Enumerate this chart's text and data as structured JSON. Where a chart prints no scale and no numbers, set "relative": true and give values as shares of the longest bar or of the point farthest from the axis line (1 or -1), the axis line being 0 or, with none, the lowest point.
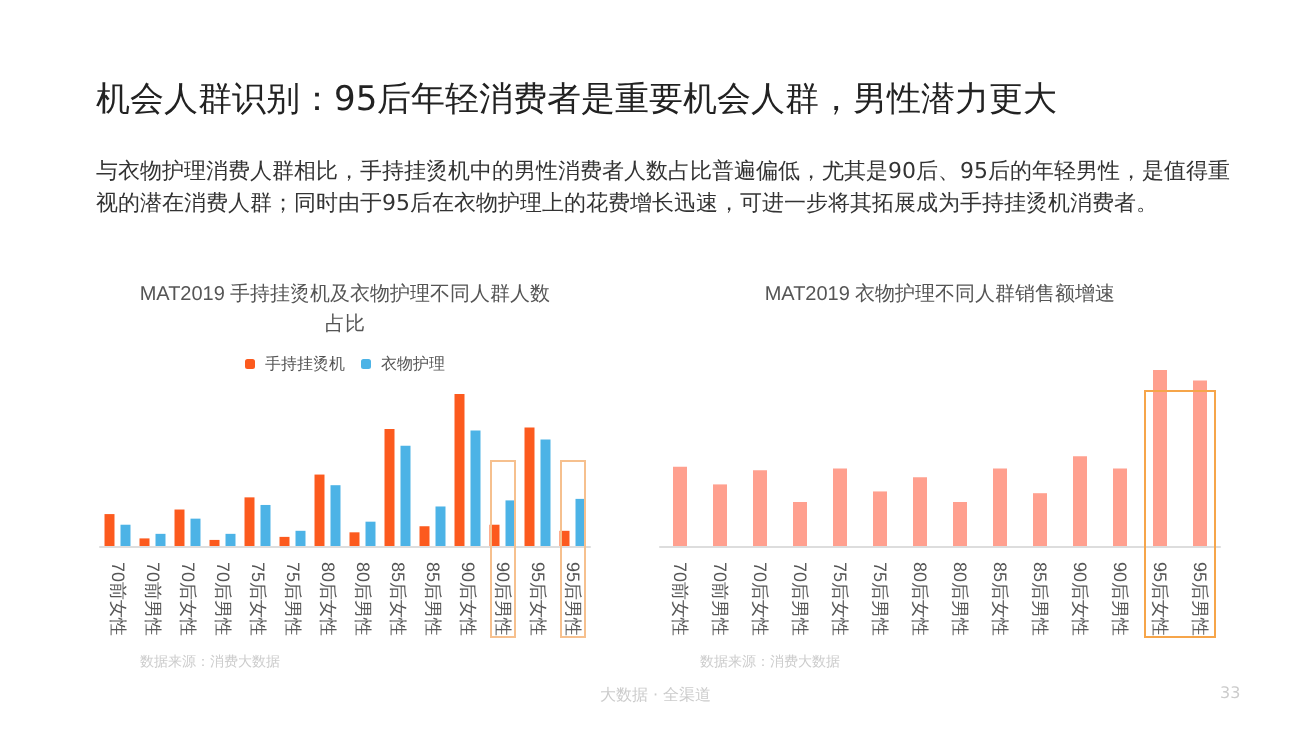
{
  "chart_data": [
    {
      "type": "other",
      "title": "机会人群识别：95后年轻消费者是重要机会人群，男性潜力更大",
      "annotations": [
        "与衣物护理消费人群相比，手持挂烫机中的男性消费者人数占比普遍偏低，尤其是90后、95后的年轻男性，是值得重视的潜在消费人群；同时由于95后在衣物护理上的花费增长迅速，可进一步将其拓展成为手持挂烫机消费者。",
        "大数据 · 全渠道",
        "33"
      ]
    },
    {
      "type": "bar",
      "title": "MAT2019 手持挂烫机及衣物护理不同人群人数占比",
      "relative": true,
      "legend": "top",
      "categories": [
        "70前女性",
        "70前男性",
        "70后女性",
        "70后男性",
        "75后女性",
        "75后男性",
        "80后女性",
        "80后男性",
        "85后女性",
        "85后男性",
        "90后女性",
        "90后男性",
        "95后女性",
        "95后男性"
      ],
      "series": [
        {
          "name": "手持挂烫机",
          "color": "#fc5a1e",
          "values": [
            0.21,
            0.05,
            0.24,
            0.04,
            0.32,
            0.06,
            0.47,
            0.09,
            0.77,
            0.13,
            1,
            0.14,
            0.78,
            0.1
          ]
        },
        {
          "name": "衣物护理",
          "color": "#4cb3e6",
          "values": [
            0.14,
            0.08,
            0.18,
            0.08,
            0.27,
            0.1,
            0.4,
            0.16,
            0.66,
            0.26,
            0.76,
            0.3,
            0.7,
            0.31
          ]
        }
      ],
      "annotations": [
        "数据来源：消费大数据"
      ]
    },
    {
      "type": "bar",
      "title": "MAT2019 衣物护理不同人群销售额增速",
      "relative": true,
      "categories": [
        "70前女性",
        "70前男性",
        "70后女性",
        "70后男性",
        "75后女性",
        "75后男性",
        "80后女性",
        "80后男性",
        "85后女性",
        "85后男性",
        "90后女性",
        "90后男性",
        "95后女性",
        "95后男性"
      ],
      "series": [
        {
          "color": "#ffa08f",
          "values": [
            0.45,
            0.35,
            0.43,
            0.25,
            0.44,
            0.31,
            0.39,
            0.25,
            0.44,
            0.3,
            0.51,
            0.44,
            1,
            0.94
          ]
        }
      ],
      "annotations": [
        "数据来源：消费大数据"
      ]
    }
  ]
}
